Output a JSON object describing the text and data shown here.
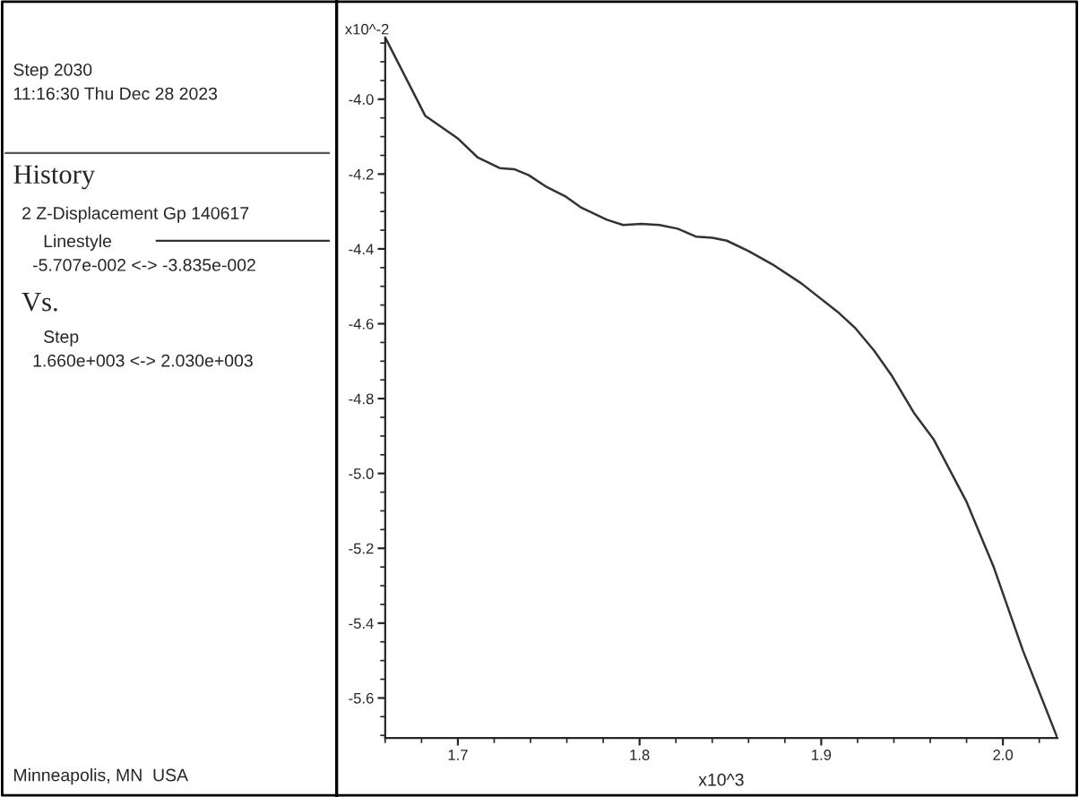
{
  "chart_data": {
    "type": "line",
    "xlabel": "x10^3",
    "ylabel": "x10^-2",
    "annotations": [
      "Step 2030",
      "11:16:30 Thu Dec 28 2023",
      "History",
      "Linestyle",
      "-5.707e-002 <-> -3.835e-002",
      "Vs.",
      "Step",
      "1.660e+003 <-> 2.030e+003",
      "Minneapolis, MN  USA"
    ],
    "series": [
      {
        "name": "2 Z-Displacement Gp 140617",
        "color": "#333333",
        "x": [
          1.66,
          1.682,
          1.7,
          1.711,
          1.723,
          1.731,
          1.739,
          1.749,
          1.759,
          1.768,
          1.782,
          1.791,
          1.801,
          1.811,
          1.821,
          1.831,
          1.84,
          1.848,
          1.86,
          1.873,
          1.889,
          1.909,
          1.919,
          1.929,
          1.939,
          1.951,
          1.962,
          1.98,
          1.995,
          2.011,
          2.03
        ],
        "values": [
          -3.835,
          -4.044,
          -4.105,
          -4.156,
          -4.184,
          -4.187,
          -4.203,
          -4.235,
          -4.259,
          -4.29,
          -4.322,
          -4.336,
          -4.333,
          -4.336,
          -4.346,
          -4.367,
          -4.37,
          -4.378,
          -4.406,
          -4.441,
          -4.492,
          -4.568,
          -4.613,
          -4.671,
          -4.74,
          -4.838,
          -4.91,
          -5.076,
          -5.251,
          -5.473,
          -5.707
        ]
      }
    ],
    "xlim": [
      1.66,
      2.03
    ],
    "ylim": [
      -5.707,
      -3.835
    ],
    "xticks": [
      1.7,
      1.8,
      1.9,
      {
        "value": 2,
        "label": "2.0"
      }
    ],
    "yticks": [
      {
        "value": -4,
        "label": "-4.0"
      },
      -4.2,
      -4.4,
      -4.6,
      -4.8,
      {
        "value": -5,
        "label": "-5.0"
      },
      -5.2,
      -5.4,
      -5.6
    ],
    "line_style": "solid",
    "marker": "none",
    "grid": false
  }
}
